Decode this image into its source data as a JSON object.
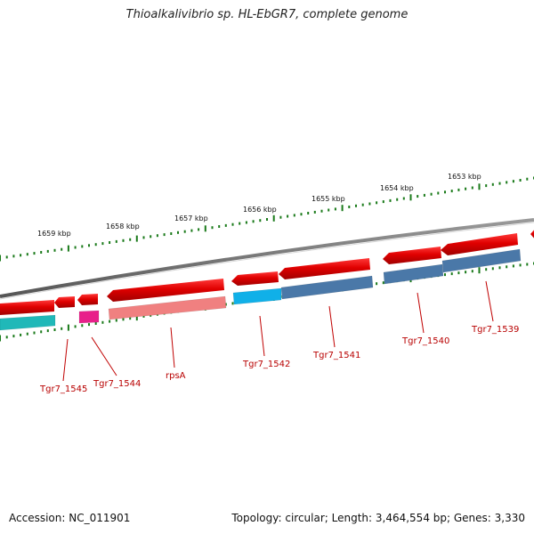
{
  "title": "Thioalkalivibrio sp. HL-EbGR7, complete genome",
  "footer": {
    "accession": "Accession: NC_011901",
    "summary": "Topology: circular; Length: 3,464,554 bp; Genes: 3,330"
  },
  "colors": {
    "backbone": "#7a7a7a",
    "forward_track": "#e80000",
    "tick": "#1a7a1a",
    "label_line": "#c00000",
    "label_text": "#b80000"
  },
  "ticks": [
    {
      "label": "1659 kbp"
    },
    {
      "label": "1658 kbp"
    },
    {
      "label": "1657 kbp"
    },
    {
      "label": "1656 kbp"
    },
    {
      "label": "1655 kbp"
    },
    {
      "label": "1654 kbp"
    },
    {
      "label": "1653 kbp"
    }
  ],
  "genes": [
    {
      "label": "Tgr7_1545",
      "color": "#20b8b8"
    },
    {
      "label": "Tgr7_1544",
      "color": "#e8208a"
    },
    {
      "label": "rpsA",
      "color": "#f08080"
    },
    {
      "label": "Tgr7_1542",
      "color": "#10b0e8"
    },
    {
      "label": "Tgr7_1541",
      "color": "#4a78a8"
    },
    {
      "label": "Tgr7_1540",
      "color": "#4a78a8"
    },
    {
      "label": "Tgr7_1539",
      "color": "#4a78a8"
    }
  ]
}
